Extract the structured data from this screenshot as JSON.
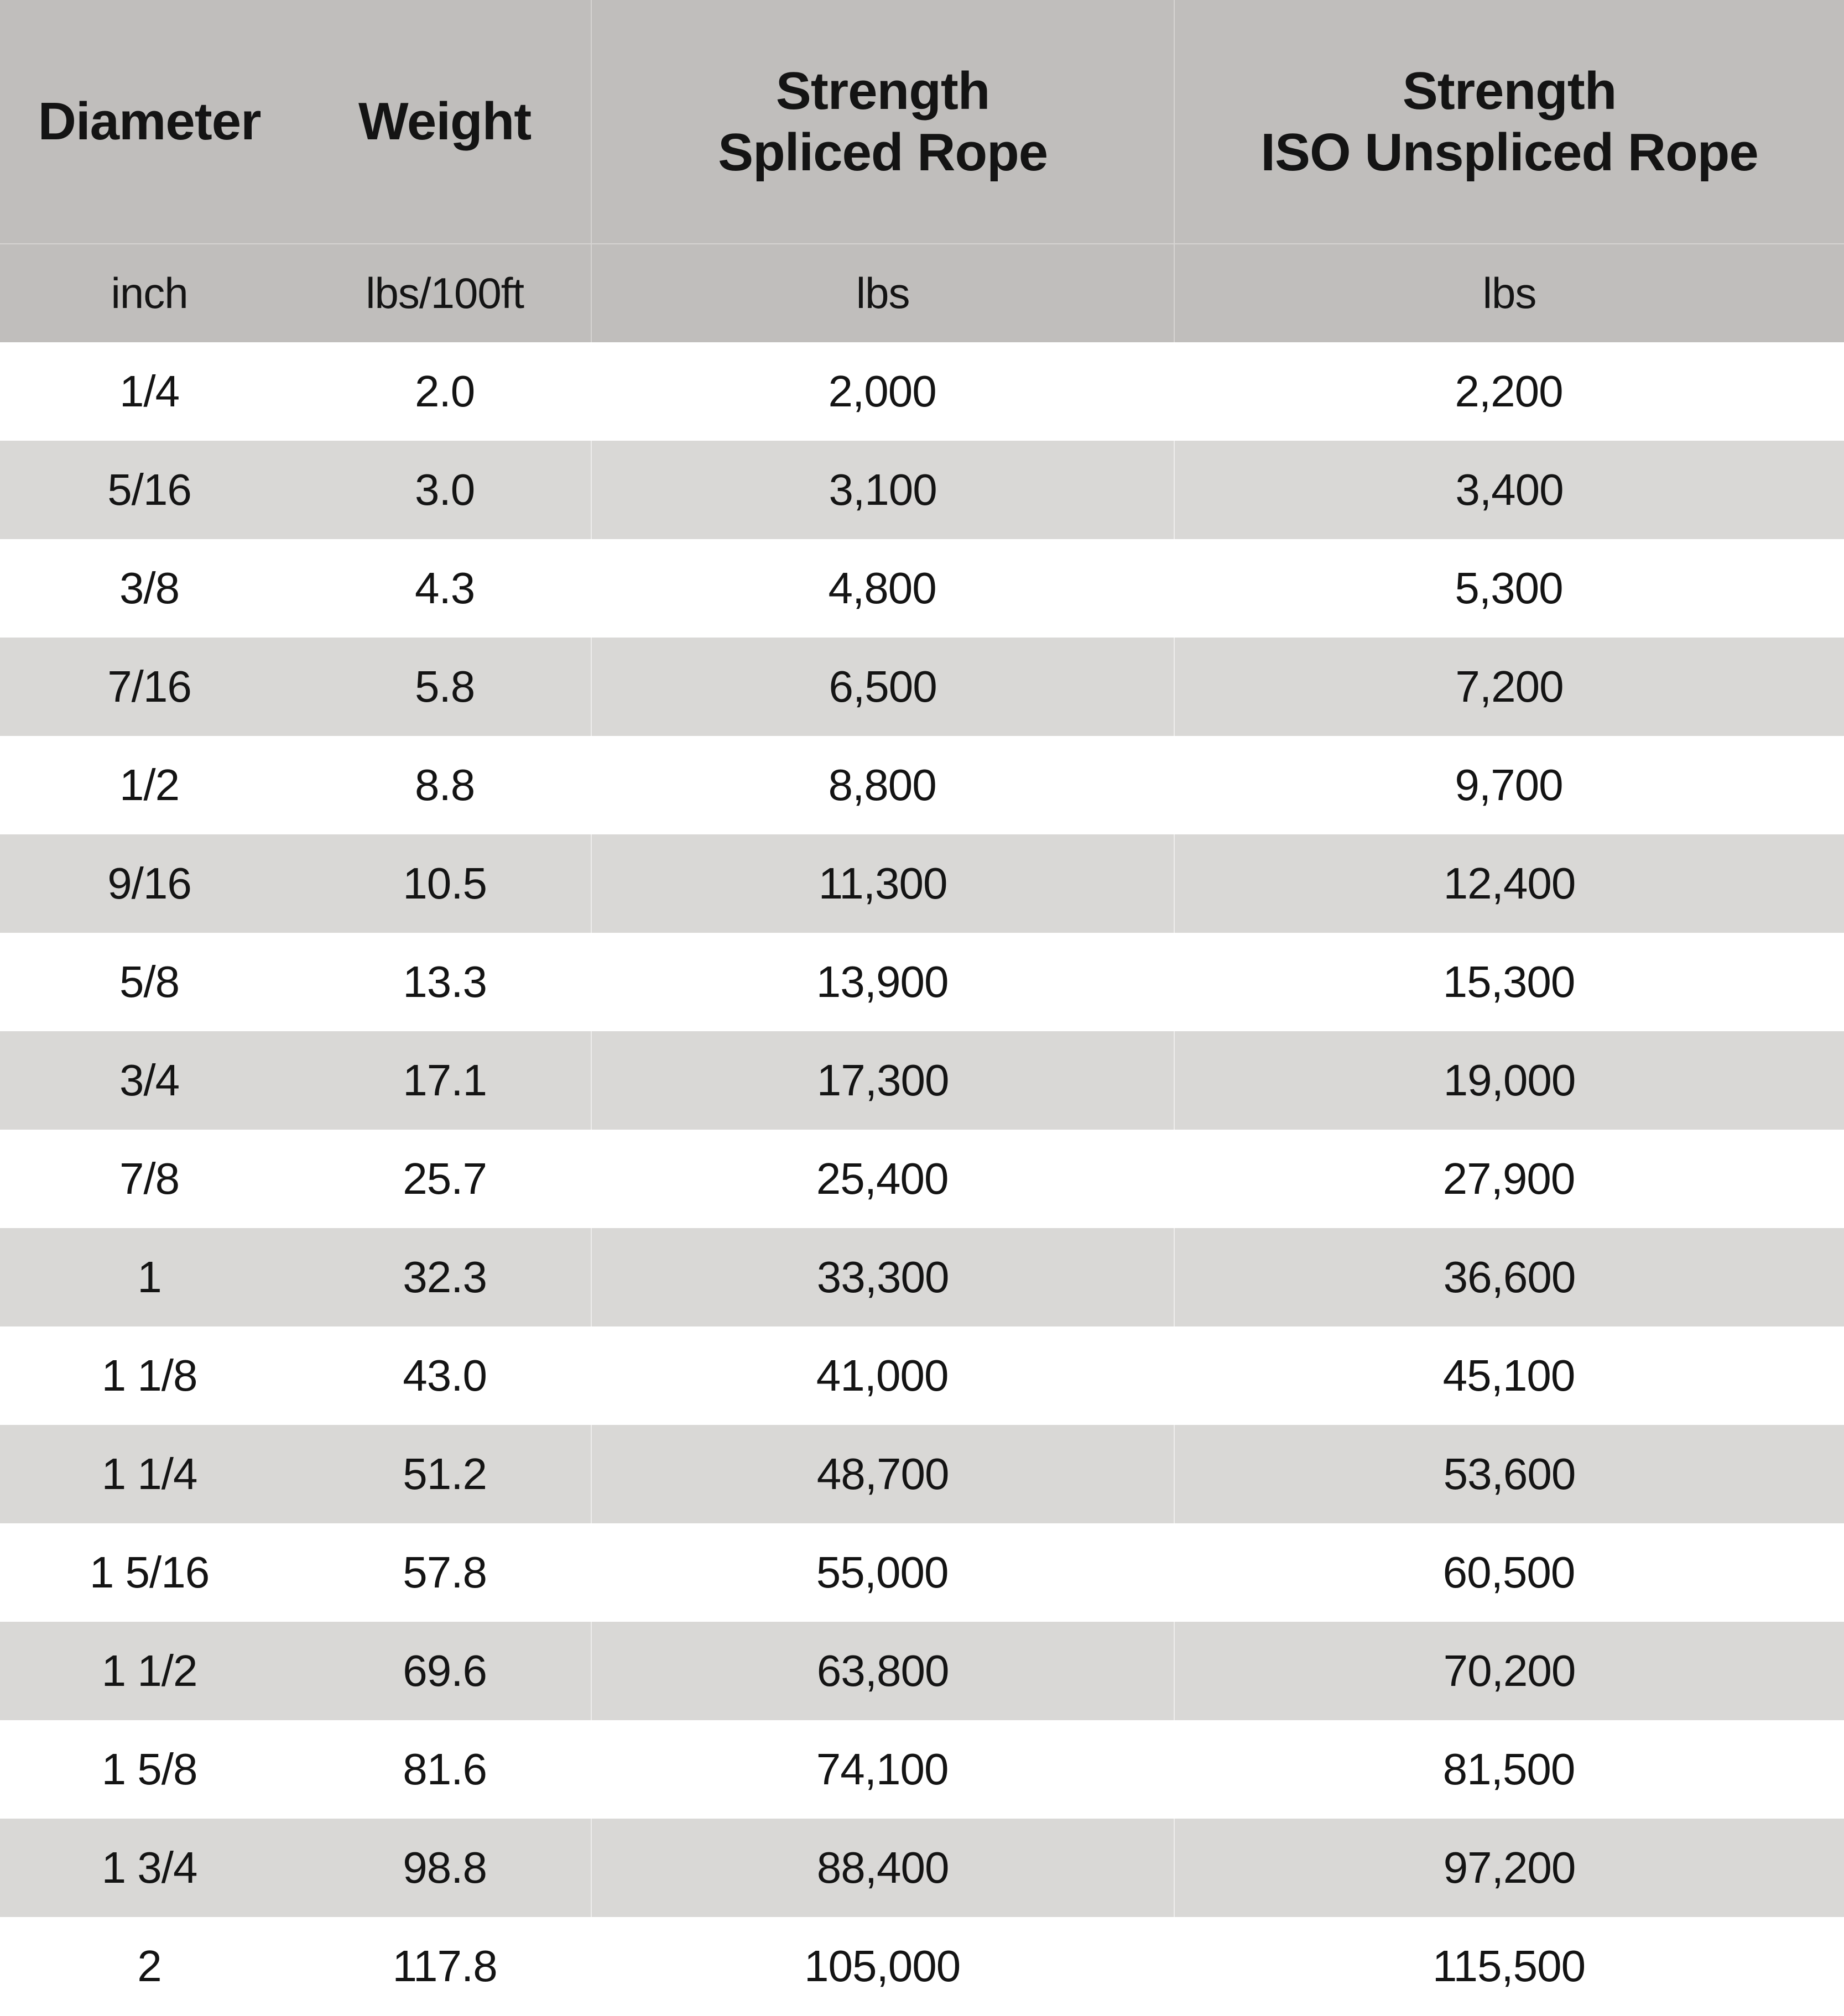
{
  "theme": {
    "band": "#c0bebc",
    "alt": "#d9d8d6",
    "line-band": "#d6d4d2",
    "line-alt": "#eeedec",
    "text": "#141414"
  },
  "table": {
    "headers": [
      {
        "line1": "Diameter"
      },
      {
        "line1": "Weight"
      },
      {
        "line1": "Strength",
        "line2": "Spliced Rope"
      },
      {
        "line1": "Strength",
        "line2": "ISO Unspliced Rope"
      }
    ],
    "units": [
      "inch",
      "lbs/100ft",
      "lbs",
      "lbs"
    ],
    "rows": [
      [
        "1/4",
        "2.0",
        "2,000",
        "2,200"
      ],
      [
        "5/16",
        "3.0",
        "3,100",
        "3,400"
      ],
      [
        "3/8",
        "4.3",
        "4,800",
        "5,300"
      ],
      [
        "7/16",
        "5.8",
        "6,500",
        "7,200"
      ],
      [
        "1/2",
        "8.8",
        "8,800",
        "9,700"
      ],
      [
        "9/16",
        "10.5",
        "11,300",
        "12,400"
      ],
      [
        "5/8",
        "13.3",
        "13,900",
        "15,300"
      ],
      [
        "3/4",
        "17.1",
        "17,300",
        "19,000"
      ],
      [
        "7/8",
        "25.7",
        "25,400",
        "27,900"
      ],
      [
        "1",
        "32.3",
        "33,300",
        "36,600"
      ],
      [
        "1 1/8",
        "43.0",
        "41,000",
        "45,100"
      ],
      [
        "1 1/4",
        "51.2",
        "48,700",
        "53,600"
      ],
      [
        "1 5/16",
        "57.8",
        "55,000",
        "60,500"
      ],
      [
        "1 1/2",
        "69.6",
        "63,800",
        "70,200"
      ],
      [
        "1 5/8",
        "81.6",
        "74,100",
        "81,500"
      ],
      [
        "1 3/4",
        "98.8",
        "88,400",
        "97,200"
      ],
      [
        "2",
        "117.8",
        "105,000",
        "115,500"
      ]
    ]
  },
  "chart_data": {
    "type": "table",
    "title": "",
    "columns": [
      "Diameter",
      "Weight",
      "Strength Spliced Rope",
      "Strength ISO Unspliced Rope"
    ],
    "units": [
      "inch",
      "lbs/100ft",
      "lbs",
      "lbs"
    ],
    "rows": [
      [
        "1/4",
        2.0,
        2000,
        2200
      ],
      [
        "5/16",
        3.0,
        3100,
        3400
      ],
      [
        "3/8",
        4.3,
        4800,
        5300
      ],
      [
        "7/16",
        5.8,
        6500,
        7200
      ],
      [
        "1/2",
        8.8,
        8800,
        9700
      ],
      [
        "9/16",
        10.5,
        11300,
        12400
      ],
      [
        "5/8",
        13.3,
        13900,
        15300
      ],
      [
        "3/4",
        17.1,
        17300,
        19000
      ],
      [
        "7/8",
        25.7,
        25400,
        27900
      ],
      [
        "1",
        32.3,
        33300,
        36600
      ],
      [
        "1 1/8",
        43.0,
        41000,
        45100
      ],
      [
        "1 1/4",
        51.2,
        48700,
        53600
      ],
      [
        "1 5/16",
        57.8,
        55000,
        60500
      ],
      [
        "1 1/2",
        69.6,
        63800,
        70200
      ],
      [
        "1 5/8",
        81.6,
        74100,
        81500
      ],
      [
        "1 3/4",
        98.8,
        88400,
        97200
      ],
      [
        "2",
        117.8,
        105000,
        115500
      ]
    ],
    "layout": {
      "row_striping": "white / light-gray alternating",
      "header_background": "gray band with units sub-row",
      "grid_lines": "vertical separators only between columns 2-3 and 3-4 on gray bands"
    }
  }
}
